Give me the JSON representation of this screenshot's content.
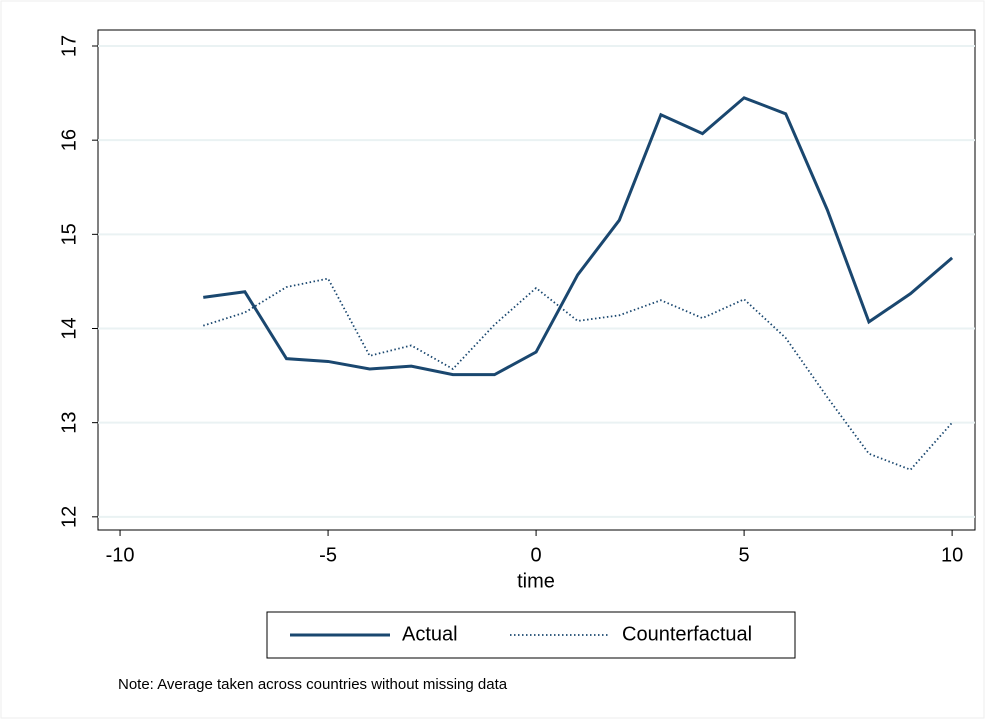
{
  "chart_data": {
    "type": "line",
    "x_label": "time",
    "note": "Note: Average taken across countries without missing data",
    "x": [
      -8,
      -7,
      -6,
      -5,
      -4,
      -3,
      -2,
      -1,
      0,
      1,
      2,
      3,
      4,
      5,
      6,
      7,
      8,
      9,
      10
    ],
    "series": [
      {
        "name": "Actual",
        "color": "#1a476f",
        "dash": "solid",
        "values": [
          14.33,
          14.39,
          13.68,
          13.65,
          13.57,
          13.6,
          13.51,
          13.51,
          13.75,
          14.57,
          15.15,
          16.27,
          16.07,
          16.45,
          16.28,
          15.26,
          14.07,
          14.37,
          14.75
        ]
      },
      {
        "name": "Counterfactual",
        "color": "#1a476f",
        "dash": "dotted",
        "values": [
          14.03,
          14.17,
          14.44,
          14.53,
          13.71,
          13.82,
          13.57,
          14.04,
          14.43,
          14.08,
          14.14,
          14.3,
          14.11,
          14.31,
          13.9,
          13.27,
          12.67,
          12.5,
          13.0
        ]
      }
    ],
    "xlim": [
      -10.53,
      10.55
    ],
    "xticks": [
      -10,
      -5,
      0,
      5,
      10
    ],
    "ylim": [
      11.86,
      17.17
    ],
    "yticks": [
      12,
      13,
      14,
      15,
      16,
      17
    ],
    "grid": true,
    "legend": "bottom"
  }
}
